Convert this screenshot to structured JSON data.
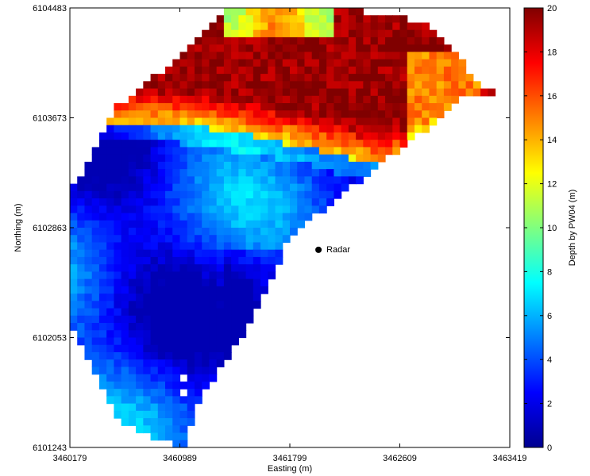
{
  "chart_data": {
    "type": "heatmap",
    "title": "",
    "xlabel": "Easting (m)",
    "ylabel": "Northing (m)",
    "colorbar_label": "Depth by PW04 (m)",
    "colormap": "jet",
    "x_ticks": [
      "3460179",
      "3460989",
      "3461799",
      "3462609",
      "3463419"
    ],
    "y_ticks": [
      "6101243",
      "6102053",
      "6102863",
      "6103673",
      "6104483"
    ],
    "xlim": [
      3460179,
      3463419
    ],
    "ylim": [
      6101243,
      6104483
    ],
    "color_range": [
      0,
      20
    ],
    "colorbar_ticks": [
      "0",
      "2",
      "4",
      "6",
      "8",
      "10",
      "12",
      "14",
      "16",
      "18",
      "20"
    ],
    "grid": false,
    "annotations": [
      {
        "text": "Radar",
        "x": 3462010,
        "y": 6102700
      }
    ]
  }
}
